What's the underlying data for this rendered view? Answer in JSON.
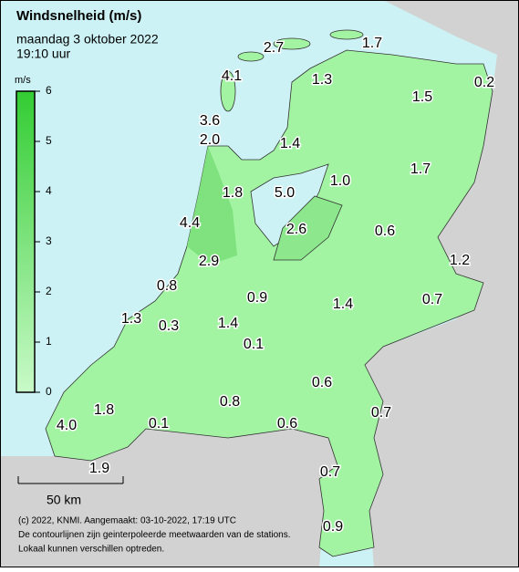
{
  "header": {
    "title": "Windsnelheid (m/s)",
    "date": "maandag 3 oktober 2022",
    "time": "19:10 uur"
  },
  "legend": {
    "unit": "m/s",
    "ticks": [
      0,
      1,
      2,
      3,
      4,
      5,
      6
    ]
  },
  "scale_bar": "50 km",
  "stations": [
    "2.7",
    "1.7",
    "4.1",
    "1.3",
    "1.5",
    "0.2",
    "3.6",
    "2.0",
    "1.4",
    "1.7",
    "1.0",
    "1.8",
    "5.0",
    "4.4",
    "2.6",
    "0.6",
    "1.2",
    "2.9",
    "0.8",
    "0.9",
    "0.7",
    "1.4",
    "1.3",
    "0.3",
    "1.4",
    "0.1",
    "0.6",
    "0.8",
    "1.8",
    "0.7",
    "4.0",
    "0.1",
    "0.6",
    "1.9",
    "0.7",
    "0.9"
  ],
  "footer": [
    "(c) 2022, KNMI. Aangemaakt: 03-10-2022, 17:19 UTC",
    "De contourlijnen zijn geinterpoleerde meetwaarden van de stations.",
    "Lokaal kunnen verschillen optreden."
  ]
}
